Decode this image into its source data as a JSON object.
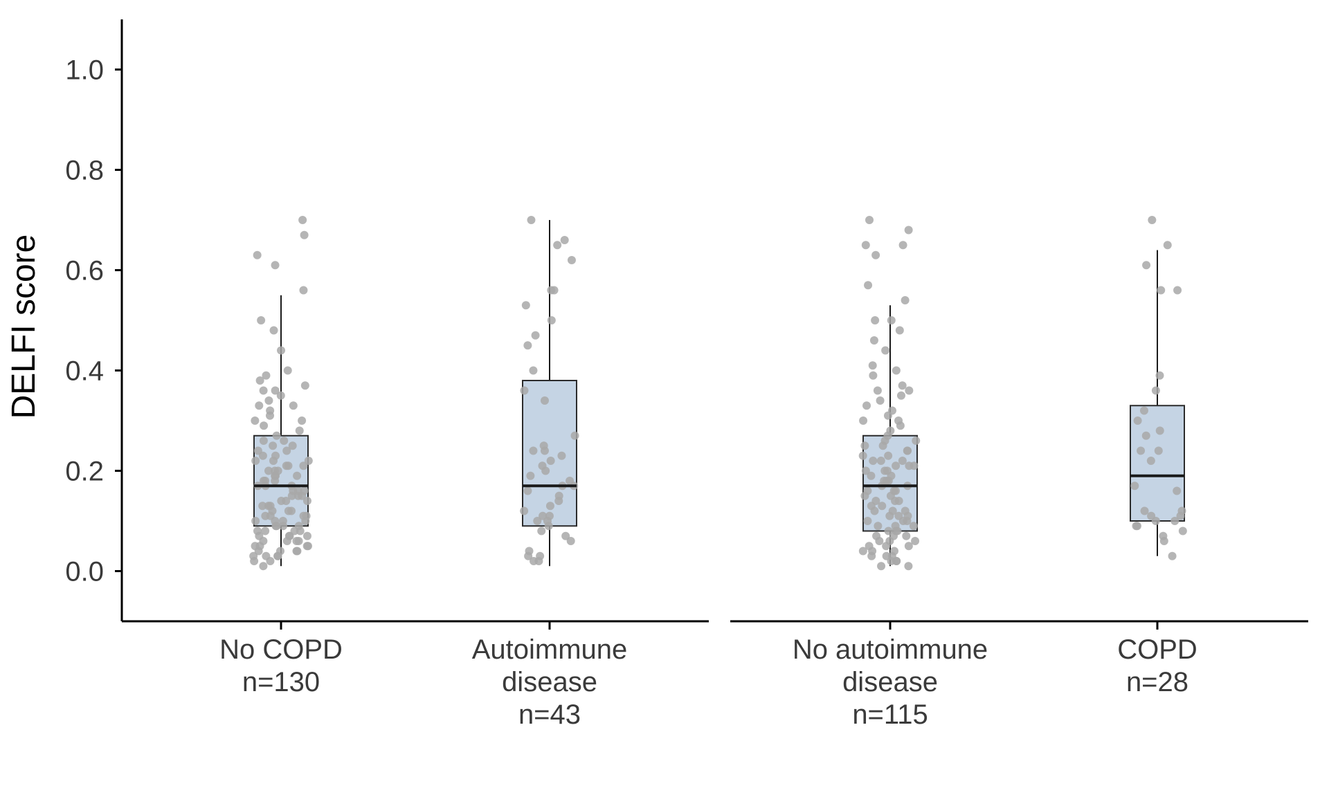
{
  "chart_data": {
    "type": "box",
    "ylabel": "DELFI score",
    "xlabel": "",
    "ylim": [
      -0.1,
      1.1
    ],
    "yticks": [
      "0.0",
      "0.2",
      "0.4",
      "0.6",
      "0.8",
      "1.0"
    ],
    "grid": false,
    "legend": "none",
    "colors": {
      "box_fill": "#c5d4e4",
      "box_stroke": "#2b2b2b",
      "median": "#1a1a1a",
      "points": "#a8a8a8",
      "axis": "#000000"
    },
    "panels": [
      {
        "groups": [
          {
            "label": [
              "No COPD",
              "n=130"
            ],
            "q1": 0.09,
            "median": 0.17,
            "q3": 0.27,
            "whisker_low": 0.01,
            "whisker_high": 0.55,
            "points": [
              0.7,
              0.67,
              0.63,
              0.61,
              0.56,
              0.5,
              0.48,
              0.44,
              0.4,
              0.39,
              0.38,
              0.37,
              0.36,
              0.36,
              0.35,
              0.34,
              0.33,
              0.33,
              0.32,
              0.31,
              0.3,
              0.3,
              0.29,
              0.28,
              0.27,
              0.26,
              0.26,
              0.25,
              0.25,
              0.24,
              0.24,
              0.23,
              0.23,
              0.22,
              0.22,
              0.22,
              0.21,
              0.21,
              0.21,
              0.2,
              0.2,
              0.2,
              0.19,
              0.19,
              0.19,
              0.18,
              0.18,
              0.18,
              0.17,
              0.17,
              0.17,
              0.16,
              0.16,
              0.16,
              0.15,
              0.15,
              0.15,
              0.14,
              0.14,
              0.14,
              0.13,
              0.13,
              0.13,
              0.12,
              0.12,
              0.12,
              0.11,
              0.11,
              0.11,
              0.11,
              0.1,
              0.1,
              0.1,
              0.1,
              0.09,
              0.09,
              0.09,
              0.09,
              0.08,
              0.08,
              0.08,
              0.08,
              0.07,
              0.07,
              0.07,
              0.07,
              0.06,
              0.06,
              0.06,
              0.06,
              0.05,
              0.05,
              0.05,
              0.05,
              0.04,
              0.04,
              0.04,
              0.04,
              0.03,
              0.03,
              0.03,
              0.03,
              0.02,
              0.02,
              0.01
            ]
          },
          {
            "label": [
              "Autoimmune",
              "disease",
              "n=43"
            ],
            "q1": 0.09,
            "median": 0.17,
            "q3": 0.38,
            "whisker_low": 0.01,
            "whisker_high": 0.7,
            "points": [
              0.7,
              0.66,
              0.65,
              0.62,
              0.56,
              0.56,
              0.53,
              0.5,
              0.47,
              0.45,
              0.4,
              0.36,
              0.34,
              0.27,
              0.25,
              0.24,
              0.24,
              0.23,
              0.22,
              0.21,
              0.2,
              0.19,
              0.18,
              0.17,
              0.17,
              0.16,
              0.15,
              0.14,
              0.13,
              0.12,
              0.11,
              0.11,
              0.1,
              0.1,
              0.09,
              0.08,
              0.07,
              0.06,
              0.04,
              0.03,
              0.03,
              0.02,
              0.02
            ]
          }
        ]
      },
      {
        "groups": [
          {
            "label": [
              "No autoimmune",
              "disease",
              "n=115"
            ],
            "q1": 0.08,
            "median": 0.17,
            "q3": 0.27,
            "whisker_low": 0.01,
            "whisker_high": 0.53,
            "points": [
              0.7,
              0.68,
              0.65,
              0.65,
              0.63,
              0.57,
              0.54,
              0.5,
              0.5,
              0.48,
              0.46,
              0.44,
              0.41,
              0.4,
              0.39,
              0.37,
              0.36,
              0.36,
              0.35,
              0.34,
              0.33,
              0.32,
              0.31,
              0.3,
              0.3,
              0.29,
              0.28,
              0.27,
              0.26,
              0.26,
              0.25,
              0.25,
              0.24,
              0.24,
              0.23,
              0.23,
              0.22,
              0.22,
              0.22,
              0.21,
              0.21,
              0.21,
              0.2,
              0.2,
              0.2,
              0.19,
              0.19,
              0.18,
              0.18,
              0.18,
              0.17,
              0.17,
              0.16,
              0.16,
              0.16,
              0.15,
              0.15,
              0.14,
              0.14,
              0.14,
              0.13,
              0.13,
              0.12,
              0.12,
              0.12,
              0.11,
              0.11,
              0.11,
              0.1,
              0.1,
              0.1,
              0.09,
              0.09,
              0.09,
              0.08,
              0.08,
              0.08,
              0.07,
              0.07,
              0.07,
              0.06,
              0.06,
              0.06,
              0.05,
              0.05,
              0.05,
              0.04,
              0.04,
              0.04,
              0.03,
              0.03,
              0.03,
              0.02,
              0.02,
              0.02,
              0.01,
              0.01
            ]
          },
          {
            "label": [
              "COPD",
              "n=28"
            ],
            "q1": 0.1,
            "median": 0.19,
            "q3": 0.33,
            "whisker_low": 0.03,
            "whisker_high": 0.64,
            "points": [
              0.7,
              0.65,
              0.61,
              0.56,
              0.56,
              0.39,
              0.36,
              0.32,
              0.3,
              0.28,
              0.27,
              0.24,
              0.24,
              0.22,
              0.17,
              0.16,
              0.12,
              0.12,
              0.11,
              0.11,
              0.1,
              0.1,
              0.09,
              0.09,
              0.08,
              0.07,
              0.06,
              0.03
            ]
          }
        ]
      }
    ]
  }
}
